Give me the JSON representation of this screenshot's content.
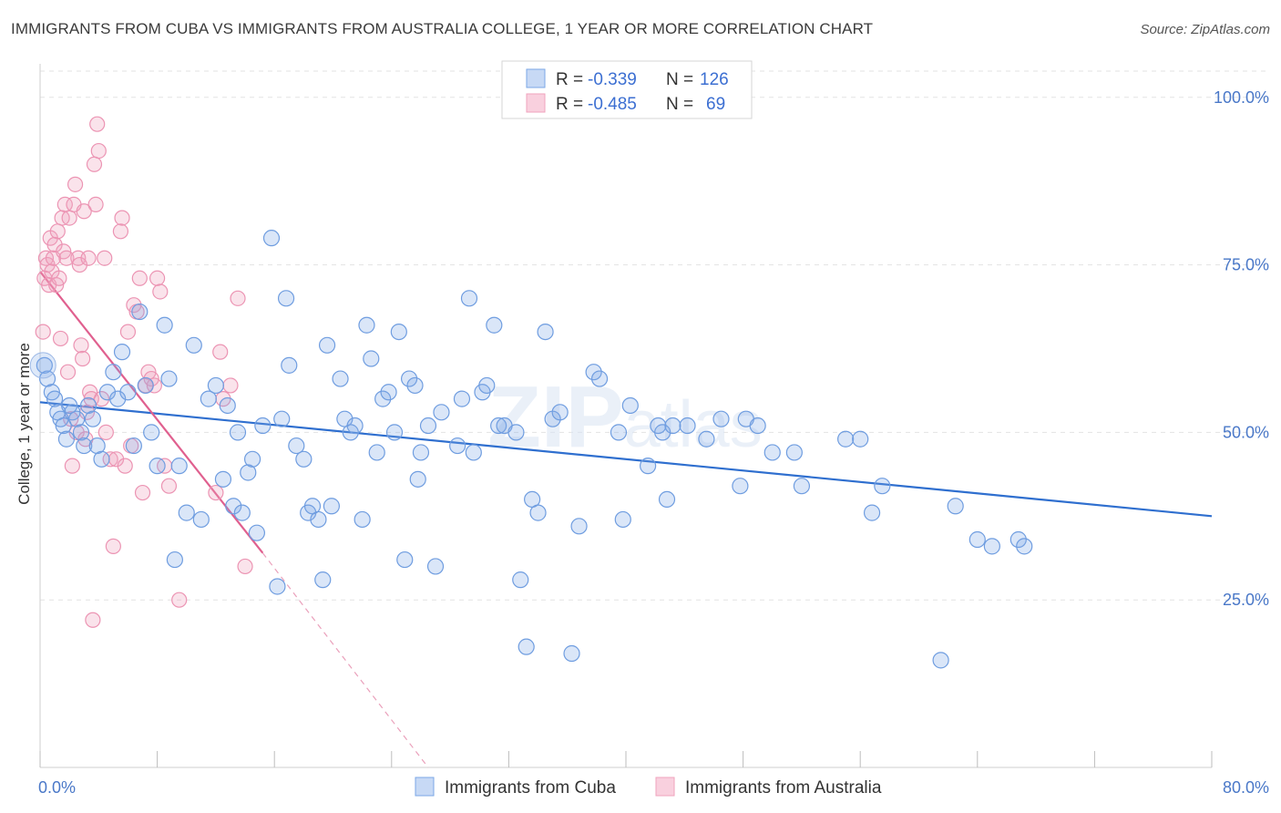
{
  "title": "IMMIGRANTS FROM CUBA VS IMMIGRANTS FROM AUSTRALIA COLLEGE, 1 YEAR OR MORE CORRELATION CHART",
  "source": "Source: ZipAtlas.com",
  "colors": {
    "cuba": "#7ba7e6",
    "cuba_line": "#2f6fcf",
    "australia": "#f0a3bd",
    "australia_line": "#e0608f",
    "axis_text": "#4a78c8"
  },
  "legend": {
    "r_label": "R =",
    "n_label": "N =",
    "cuba": {
      "r": "-0.339",
      "n": "126"
    },
    "australia": {
      "r": "-0.485",
      "n": "69"
    }
  },
  "bottom_legend": {
    "cuba": "Immigrants from Cuba",
    "australia": "Immigrants from Australia"
  },
  "chart_data": {
    "type": "scatter",
    "ylabel": "College, 1 year or more",
    "xlabel": "",
    "xlim": [
      0,
      80
    ],
    "ylim": [
      0,
      105
    ],
    "x_tick_labels": [
      "0.0%",
      "80.0%"
    ],
    "y_ticks": [
      25,
      50,
      75,
      100
    ],
    "y_tick_labels": [
      "25.0%",
      "50.0%",
      "75.0%",
      "100.0%"
    ],
    "grid": true,
    "series": [
      {
        "name": "Immigrants from Cuba",
        "trend": [
          [
            0,
            54.5
          ],
          [
            80,
            37.5
          ]
        ],
        "points": [
          [
            0.3,
            60
          ],
          [
            0.5,
            58
          ],
          [
            0.8,
            56
          ],
          [
            1.0,
            55
          ],
          [
            1.2,
            53
          ],
          [
            1.4,
            52
          ],
          [
            1.6,
            51
          ],
          [
            1.8,
            49
          ],
          [
            2.0,
            54
          ],
          [
            2.2,
            53
          ],
          [
            2.5,
            52
          ],
          [
            2.8,
            50
          ],
          [
            3.0,
            48
          ],
          [
            3.3,
            54
          ],
          [
            3.6,
            52
          ],
          [
            3.9,
            48
          ],
          [
            4.2,
            46
          ],
          [
            4.6,
            56
          ],
          [
            5.0,
            59
          ],
          [
            5.3,
            55
          ],
          [
            5.6,
            62
          ],
          [
            6.0,
            56
          ],
          [
            6.4,
            48
          ],
          [
            6.8,
            68
          ],
          [
            7.2,
            57
          ],
          [
            7.6,
            50
          ],
          [
            8.0,
            45
          ],
          [
            8.5,
            66
          ],
          [
            8.8,
            58
          ],
          [
            9.2,
            31
          ],
          [
            9.5,
            45
          ],
          [
            10.0,
            38
          ],
          [
            10.5,
            63
          ],
          [
            11.0,
            37
          ],
          [
            11.5,
            55
          ],
          [
            12.0,
            57
          ],
          [
            12.5,
            43
          ],
          [
            12.8,
            54
          ],
          [
            13.2,
            39
          ],
          [
            13.5,
            50
          ],
          [
            13.8,
            38
          ],
          [
            14.2,
            44
          ],
          [
            14.5,
            46
          ],
          [
            14.8,
            35
          ],
          [
            15.2,
            51
          ],
          [
            15.8,
            79
          ],
          [
            16.2,
            27
          ],
          [
            16.5,
            52
          ],
          [
            16.8,
            70
          ],
          [
            17.0,
            60
          ],
          [
            17.5,
            48
          ],
          [
            18.0,
            46
          ],
          [
            18.3,
            38
          ],
          [
            18.6,
            39
          ],
          [
            19.0,
            37
          ],
          [
            19.3,
            28
          ],
          [
            19.6,
            63
          ],
          [
            19.9,
            39
          ],
          [
            20.5,
            58
          ],
          [
            20.8,
            52
          ],
          [
            21.2,
            50
          ],
          [
            21.5,
            51
          ],
          [
            22.0,
            37
          ],
          [
            22.3,
            66
          ],
          [
            22.6,
            61
          ],
          [
            23.0,
            47
          ],
          [
            23.4,
            55
          ],
          [
            23.8,
            56
          ],
          [
            24.2,
            50
          ],
          [
            24.5,
            65
          ],
          [
            24.9,
            31
          ],
          [
            25.2,
            58
          ],
          [
            25.6,
            57
          ],
          [
            25.8,
            43
          ],
          [
            26.0,
            47
          ],
          [
            26.5,
            51
          ],
          [
            27.0,
            30
          ],
          [
            27.4,
            53
          ],
          [
            28.5,
            48
          ],
          [
            28.8,
            55
          ],
          [
            29.3,
            70
          ],
          [
            29.6,
            47
          ],
          [
            30.2,
            56
          ],
          [
            30.5,
            57
          ],
          [
            31.0,
            66
          ],
          [
            31.3,
            51
          ],
          [
            31.7,
            51
          ],
          [
            32.5,
            50
          ],
          [
            32.8,
            28
          ],
          [
            33.2,
            18
          ],
          [
            33.6,
            40
          ],
          [
            34.0,
            38
          ],
          [
            34.5,
            65
          ],
          [
            35.0,
            52
          ],
          [
            35.5,
            53
          ],
          [
            36.3,
            17
          ],
          [
            36.8,
            36
          ],
          [
            37.8,
            59
          ],
          [
            38.2,
            58
          ],
          [
            39.5,
            50
          ],
          [
            39.8,
            37
          ],
          [
            40.3,
            54
          ],
          [
            41.5,
            45
          ],
          [
            42.2,
            51
          ],
          [
            42.5,
            50
          ],
          [
            42.8,
            40
          ],
          [
            43.2,
            51
          ],
          [
            44.2,
            51
          ],
          [
            45.5,
            49
          ],
          [
            46.5,
            52
          ],
          [
            47.8,
            42
          ],
          [
            48.2,
            52
          ],
          [
            49.0,
            51
          ],
          [
            50.0,
            47
          ],
          [
            51.5,
            47
          ],
          [
            52.0,
            42
          ],
          [
            55.0,
            49
          ],
          [
            56.0,
            49
          ],
          [
            56.8,
            38
          ],
          [
            57.5,
            42
          ],
          [
            61.5,
            16
          ],
          [
            62.5,
            39
          ],
          [
            64.0,
            34
          ],
          [
            65.0,
            33
          ],
          [
            66.8,
            34
          ],
          [
            67.2,
            33
          ]
        ]
      },
      {
        "name": "Immigrants from Australia",
        "trend": [
          [
            0,
            74
          ],
          [
            15.2,
            32
          ]
        ],
        "trend_extension": [
          [
            15.2,
            32
          ],
          [
            26.5,
            0
          ]
        ],
        "points": [
          [
            0.2,
            65
          ],
          [
            0.3,
            73
          ],
          [
            0.4,
            76
          ],
          [
            0.5,
            75
          ],
          [
            0.6,
            72
          ],
          [
            0.7,
            79
          ],
          [
            0.8,
            74
          ],
          [
            0.9,
            76
          ],
          [
            1.0,
            78
          ],
          [
            1.1,
            72
          ],
          [
            1.2,
            80
          ],
          [
            1.3,
            73
          ],
          [
            1.4,
            64
          ],
          [
            1.5,
            82
          ],
          [
            1.6,
            77
          ],
          [
            1.7,
            84
          ],
          [
            1.8,
            76
          ],
          [
            1.9,
            59
          ],
          [
            2.0,
            82
          ],
          [
            2.1,
            52
          ],
          [
            2.2,
            45
          ],
          [
            2.3,
            84
          ],
          [
            2.4,
            87
          ],
          [
            2.5,
            50
          ],
          [
            2.6,
            76
          ],
          [
            2.7,
            75
          ],
          [
            2.8,
            63
          ],
          [
            2.9,
            61
          ],
          [
            3.0,
            83
          ],
          [
            3.1,
            49
          ],
          [
            3.2,
            53
          ],
          [
            3.3,
            76
          ],
          [
            3.4,
            56
          ],
          [
            3.5,
            55
          ],
          [
            3.6,
            22
          ],
          [
            3.7,
            90
          ],
          [
            3.8,
            84
          ],
          [
            3.9,
            96
          ],
          [
            4.0,
            92
          ],
          [
            4.2,
            55
          ],
          [
            4.4,
            76
          ],
          [
            4.5,
            50
          ],
          [
            4.8,
            46
          ],
          [
            5.0,
            33
          ],
          [
            5.2,
            46
          ],
          [
            5.5,
            80
          ],
          [
            5.6,
            82
          ],
          [
            5.8,
            45
          ],
          [
            6.0,
            65
          ],
          [
            6.2,
            48
          ],
          [
            6.4,
            69
          ],
          [
            6.6,
            68
          ],
          [
            6.8,
            73
          ],
          [
            7.0,
            41
          ],
          [
            7.2,
            57
          ],
          [
            7.4,
            59
          ],
          [
            7.6,
            58
          ],
          [
            7.8,
            57
          ],
          [
            8.0,
            73
          ],
          [
            8.2,
            71
          ],
          [
            8.5,
            45
          ],
          [
            8.8,
            42
          ],
          [
            9.5,
            25
          ],
          [
            12.0,
            41
          ],
          [
            12.3,
            62
          ],
          [
            12.5,
            55
          ],
          [
            13.0,
            57
          ],
          [
            13.5,
            70
          ],
          [
            14.0,
            30
          ]
        ]
      }
    ]
  }
}
